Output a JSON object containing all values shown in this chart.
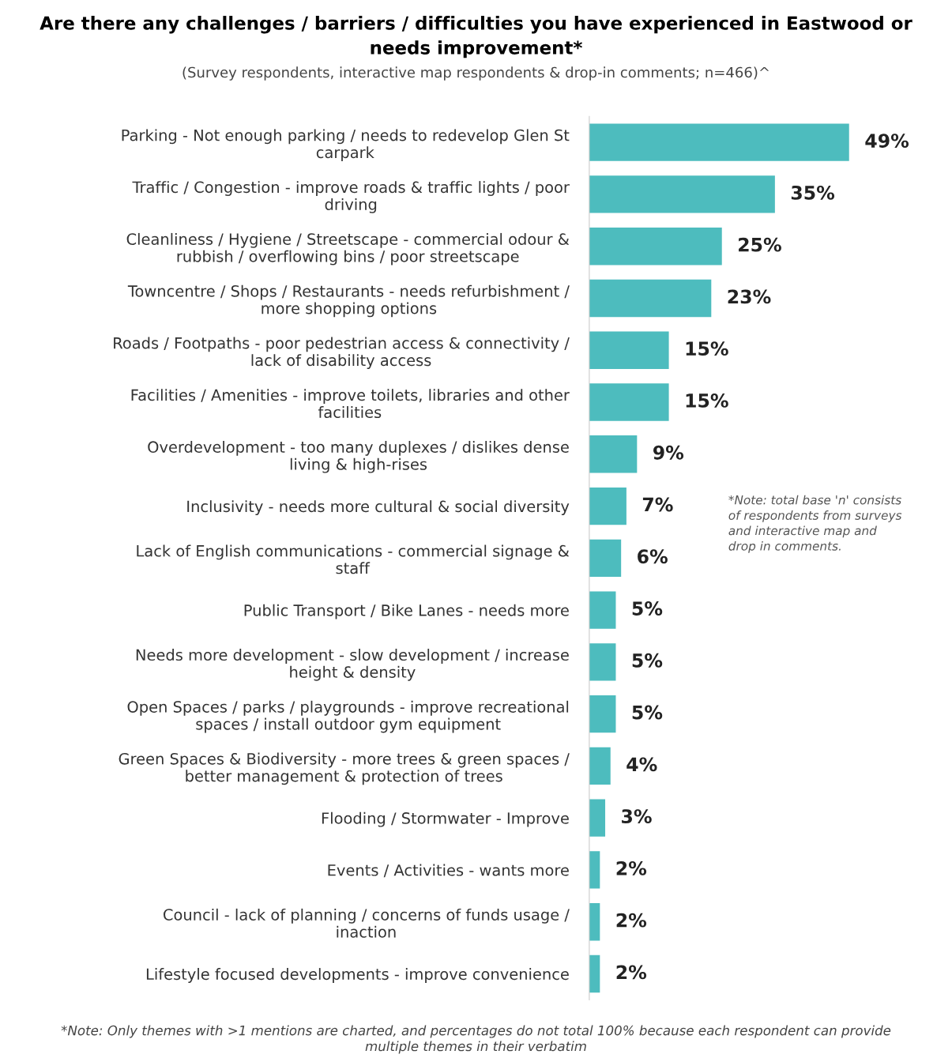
{
  "chart_data": {
    "type": "bar",
    "orientation": "horizontal",
    "title": "Are there any challenges / barriers / difficulties you have experienced in Eastwood or\nneeds improvement*",
    "subtitle": "(Survey respondents, interactive map respondents & drop-in comments; n=466)^",
    "categories": [
      "Parking - Not enough parking / needs to redevelop Glen St\ncarpark",
      "Traffic / Congestion - improve roads & traffic lights / poor\ndriving",
      "Cleanliness / Hygiene / Streetscape - commercial odour &\nrubbish / overflowing bins / poor streetscape",
      "Towncentre / Shops / Restaurants - needs refurbishment /\nmore shopping options",
      "Roads / Footpaths - poor pedestrian access & connectivity /\nlack of disability access",
      "Facilities / Amenities - improve toilets, libraries and other\nfacilities",
      "Overdevelopment - too many duplexes / dislikes dense\nliving & high-rises",
      "Inclusivity - needs more cultural & social diversity",
      "Lack of English communications - commercial signage &\nstaff",
      "Public Transport / Bike Lanes - needs more",
      "Needs more development - slow development / increase\nheight & density",
      "Open Spaces / parks / playgrounds - improve recreational\nspaces / install outdoor gym equipment",
      "Green Spaces & Biodiversity - more trees & green spaces /\nbetter management & protection of trees",
      "Flooding / Stormwater - Improve",
      "Events / Activities - wants more",
      "Council - lack of planning / concerns of funds usage /\ninaction",
      "Lifestyle focused developments - improve convenience"
    ],
    "values": [
      49,
      35,
      25,
      23,
      15,
      15,
      9,
      7,
      6,
      5,
      5,
      5,
      4,
      3,
      2,
      2,
      2
    ],
    "value_labels": [
      "49%",
      "35%",
      "25%",
      "23%",
      "15%",
      "15%",
      "9%",
      "7%",
      "6%",
      "5%",
      "5%",
      "5%",
      "4%",
      "3%",
      "2%",
      "2%",
      "2%"
    ],
    "color": "#4dbcbe",
    "tick_labels": "y",
    "grid": false,
    "legend": false,
    "annotations": [
      "*Note: total base 'n' consists\nof respondents from surveys\nand interactive map and\ndrop in comments.",
      "*Note: Only themes with >1 mentions are charted, and percentages do not total 100% because each respondent can provide\nmultiple themes in their verbatim"
    ]
  }
}
